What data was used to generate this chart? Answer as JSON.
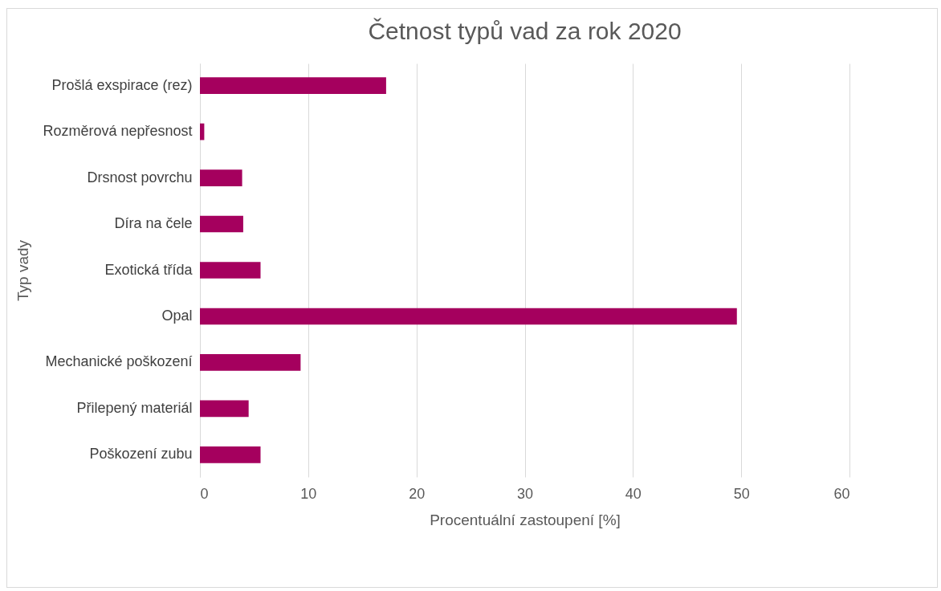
{
  "chart_data": {
    "type": "bar",
    "orientation": "horizontal",
    "title": "Četnost typů vad za rok 2020",
    "xlabel": "Procentuální zastoupení [%]",
    "ylabel": "Typ vady",
    "categories": [
      "Prošlá exspirace (rez)",
      "Rozměrová nepřesnost",
      "Drsnost povrchu",
      "Díra na čele",
      "Exotická třída",
      "Opal",
      "Mechanické poškození",
      "Přilepený materiál",
      "Poškození zubu"
    ],
    "values": [
      17.2,
      0.4,
      3.9,
      4.0,
      5.6,
      49.6,
      9.3,
      4.5,
      5.6
    ],
    "color": "#a5005e",
    "xlim": [
      0,
      60
    ],
    "xticks": [
      0,
      10,
      20,
      30,
      40,
      50,
      60
    ],
    "grid": "x"
  }
}
